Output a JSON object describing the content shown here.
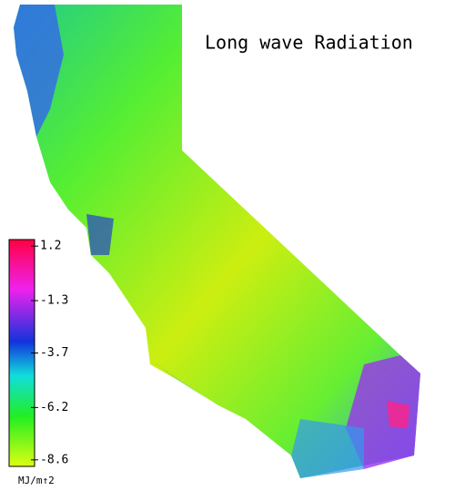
{
  "title": "Long wave Radiation",
  "colorbar": {
    "lim": [
      -8.9,
      1.5
    ],
    "ticks": [
      1.2,
      -1.3,
      -3.7,
      -6.2,
      -8.6
    ],
    "unit": "MJ/m↑2"
  }
}
